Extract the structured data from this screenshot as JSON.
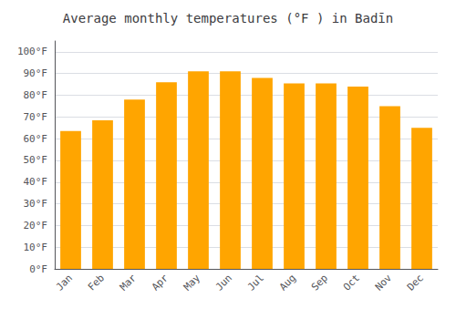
{
  "chart_data": {
    "type": "bar",
    "title": "Average monthly temperatures (°F ) in Badīn",
    "categories": [
      "Jan",
      "Feb",
      "Mar",
      "Apr",
      "May",
      "Jun",
      "Jul",
      "Aug",
      "Sep",
      "Oct",
      "Nov",
      "Dec"
    ],
    "values": [
      63.5,
      68.5,
      78,
      86,
      91,
      91,
      88,
      85.5,
      85.5,
      84,
      75,
      65
    ],
    "color": "#FFA500",
    "ylim": [
      0,
      105
    ],
    "yticks": [
      {
        "value": 0,
        "label": "0°F"
      },
      {
        "value": 10,
        "label": "10°F"
      },
      {
        "value": 20,
        "label": "20°F"
      },
      {
        "value": 30,
        "label": "30°F"
      },
      {
        "value": 40,
        "label": "40°F"
      },
      {
        "value": 50,
        "label": "50°F"
      },
      {
        "value": 60,
        "label": "60°F"
      },
      {
        "value": 70,
        "label": "70°F"
      },
      {
        "value": 80,
        "label": "80°F"
      },
      {
        "value": 90,
        "label": "90°F"
      },
      {
        "value": 100,
        "label": "100°F"
      }
    ],
    "grid": true
  }
}
